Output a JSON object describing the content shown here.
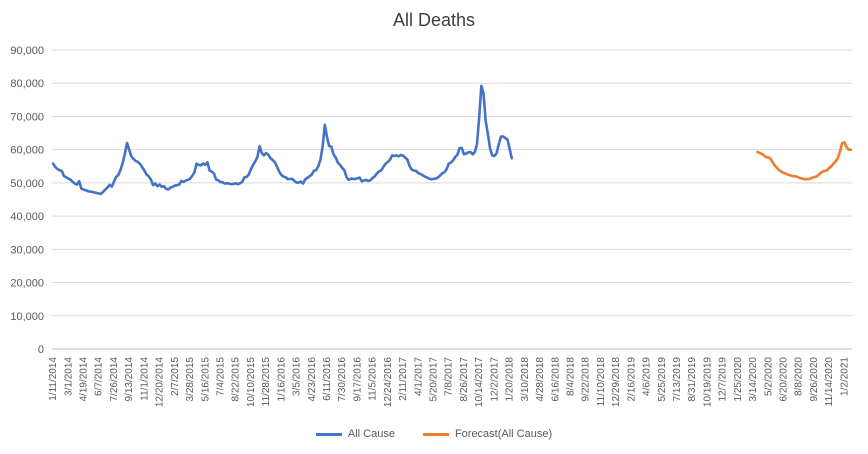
{
  "chart_data": {
    "type": "line",
    "title": "All Deaths",
    "ylim": [
      0,
      90000
    ],
    "yticks": [
      "0",
      "10,000",
      "20,000",
      "30,000",
      "40,000",
      "50,000",
      "60,000",
      "70,000",
      "80,000",
      "90,000"
    ],
    "grid": true,
    "legend_position": "bottom",
    "x_start": "1/11/2014",
    "x_step_weeks": 1,
    "x_tick_every_weeks": 7,
    "x_tick_labels": [
      "1/11/2014",
      "3/1/2014",
      "4/19/2014",
      "6/7/2014",
      "7/26/2014",
      "9/13/2014",
      "11/1/2014",
      "12/20/2014",
      "2/7/2015",
      "3/28/2015",
      "5/16/2015",
      "7/4/2015",
      "8/22/2015",
      "10/10/2015",
      "11/28/2015",
      "1/16/2016",
      "3/5/2016",
      "4/23/2016",
      "6/11/2016",
      "7/30/2016",
      "9/17/2016",
      "11/5/2016",
      "12/24/2016",
      "2/11/2017",
      "4/1/2017",
      "5/20/2017",
      "7/8/2017",
      "8/26/2017",
      "10/14/2017",
      "12/2/2017",
      "1/20/2018",
      "3/10/2018",
      "4/28/2018",
      "6/16/2018",
      "8/4/2018",
      "9/22/2018",
      "11/10/2018",
      "12/29/2018",
      "2/16/2019",
      "4/6/2019",
      "5/25/2019",
      "7/13/2019",
      "8/31/2019",
      "10/19/2019",
      "12/7/2019",
      "1/25/2020",
      "3/14/2020",
      "5/2/2020",
      "6/20/2020",
      "8/8/2020",
      "9/26/2020",
      "11/14/2020",
      "1/2/2021"
    ],
    "series": [
      {
        "name": "All Cause",
        "color": "#4472c4",
        "start_week_index": 0,
        "values": [
          55800,
          54800,
          54200,
          53800,
          53600,
          52000,
          51700,
          51300,
          51000,
          50300,
          49800,
          49500,
          50500,
          48300,
          48000,
          47800,
          47500,
          47400,
          47300,
          47100,
          47000,
          46800,
          46700,
          47300,
          48000,
          48600,
          49400,
          48900,
          50300,
          51800,
          52400,
          53900,
          56000,
          58700,
          62000,
          60000,
          58000,
          57200,
          56600,
          56300,
          55700,
          54700,
          53700,
          52500,
          52000,
          51000,
          49300,
          49800,
          49000,
          49500,
          48800,
          49000,
          48200,
          48000,
          48600,
          48800,
          49200,
          49300,
          49500,
          50600,
          50300,
          50700,
          50900,
          51200,
          52100,
          53100,
          55800,
          55400,
          55300,
          55800,
          55400,
          56200,
          53700,
          53400,
          52800,
          51000,
          50800,
          50200,
          50200,
          49800,
          49900,
          49800,
          49600,
          49700,
          49900,
          49600,
          49900,
          50300,
          51700,
          51800,
          52500,
          54100,
          55400,
          56500,
          57800,
          61000,
          59000,
          58300,
          59000,
          58500,
          57400,
          56900,
          56200,
          54900,
          53400,
          52400,
          51900,
          51700,
          51100,
          51200,
          51200,
          50600,
          50100,
          50100,
          50400,
          49800,
          51100,
          51500,
          52000,
          52500,
          53700,
          53800,
          55000,
          57000,
          61000,
          67500,
          63800,
          61100,
          60900,
          58600,
          57600,
          56100,
          55400,
          54500,
          53800,
          51700,
          50900,
          51300,
          51200,
          51200,
          51400,
          51600,
          50500,
          50700,
          50900,
          50600,
          50800,
          51500,
          52000,
          52900,
          53500,
          53800,
          54900,
          55800,
          56300,
          57000,
          58300,
          58100,
          58300,
          58000,
          58400,
          58200,
          57600,
          57000,
          55000,
          54000,
          53700,
          53600,
          52900,
          52700,
          52300,
          51900,
          51600,
          51300,
          51100,
          51200,
          51300,
          51600,
          52200,
          52900,
          53200,
          54100,
          55800,
          56100,
          56800,
          57800,
          58500,
          60500,
          60500,
          58600,
          58800,
          59200,
          59300,
          58600,
          59300,
          61700,
          69700,
          79200,
          76800,
          68600,
          64700,
          60400,
          58300,
          58100,
          58900,
          61600,
          63900,
          64000,
          63500,
          63100,
          60300,
          57400
        ]
      },
      {
        "name": "Forecast(All Cause)",
        "color": "#ed7d31",
        "start_week_index": 324,
        "values": [
          59300,
          59000,
          58700,
          58300,
          57700,
          57700,
          57300,
          56200,
          55200,
          54500,
          53800,
          53400,
          53000,
          52800,
          52500,
          52300,
          52100,
          52000,
          51900,
          51600,
          51400,
          51200,
          51100,
          51100,
          51200,
          51500,
          51700,
          51900,
          52300,
          53000,
          53400,
          53600,
          53800,
          54500,
          55000,
          55800,
          56500,
          57500,
          59500,
          62000,
          62200,
          60800,
          60000,
          60000
        ]
      }
    ]
  }
}
